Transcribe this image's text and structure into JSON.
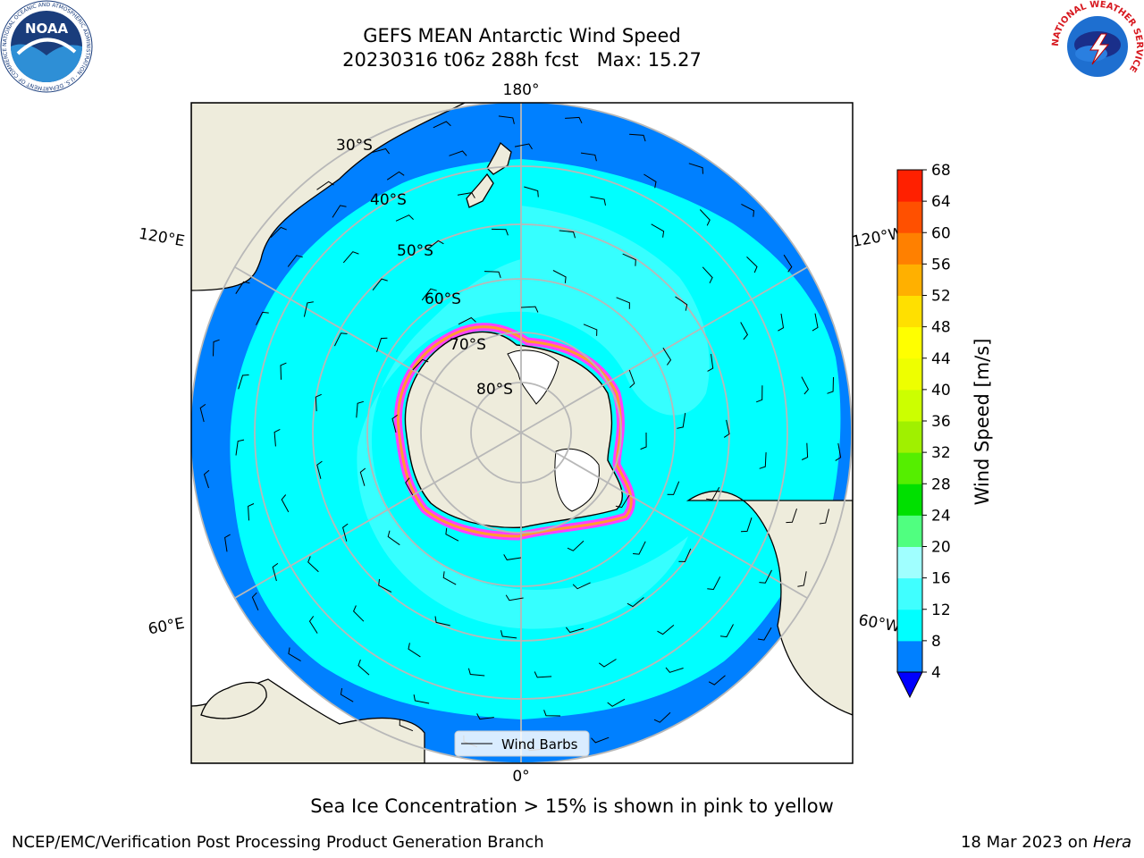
{
  "title": {
    "line1": "GEFS MEAN Antarctic Wind Speed",
    "line2": "20230316 t06z 288h fcst   Max: 15.27"
  },
  "map": {
    "projection": "south-polar-stereographic",
    "lon_labels": {
      "top": "180°",
      "bottom": "0°",
      "left_upper": "120°E",
      "left_lower": "60°E",
      "right_upper": "120°W",
      "right_lower": "60°W"
    },
    "lat_labels": [
      "30°S",
      "40°S",
      "50°S",
      "60°S",
      "70°S",
      "80°S"
    ],
    "legend_label": "Wind Barbs",
    "colors": {
      "ocean_low": "#0080ff",
      "ocean_mid": "#00ffff",
      "ocean_high": "#40ffff",
      "land": "#eeecdc",
      "ice_edge": "#ff40ff",
      "grid": "#b8b8b8"
    }
  },
  "colorbar": {
    "label": "Wind Speed [m/s]",
    "ticks": [
      "4",
      "8",
      "12",
      "16",
      "20",
      "24",
      "28",
      "32",
      "36",
      "40",
      "44",
      "48",
      "52",
      "56",
      "60",
      "64",
      "68"
    ],
    "colors": [
      "#0080ff",
      "#00ffff",
      "#40ffff",
      "#a0ffff",
      "#50ff80",
      "#00e000",
      "#55ee00",
      "#a0f000",
      "#ccff00",
      "#eeff00",
      "#ffff00",
      "#ffe000",
      "#ffb000",
      "#ff8000",
      "#ff5000",
      "#ff2000",
      "#ff0000"
    ],
    "under_color": "#0000ff"
  },
  "caption": "Sea Ice Concentration > 15% is shown in pink to yellow",
  "footer": {
    "left": "NCEP/EMC/Verification Post Processing Product Generation Branch",
    "right_date": "18 Mar 2023 on ",
    "right_machine": "Hera"
  },
  "logos": {
    "noaa_text": "NOAA",
    "noaa_ring": "NATIONAL OCEANIC AND ATMOSPHERIC ADMINISTRATION · U.S. DEPARTMENT OF COMMERCE",
    "nws_ring": "NATIONAL WEATHER SERVICE"
  }
}
